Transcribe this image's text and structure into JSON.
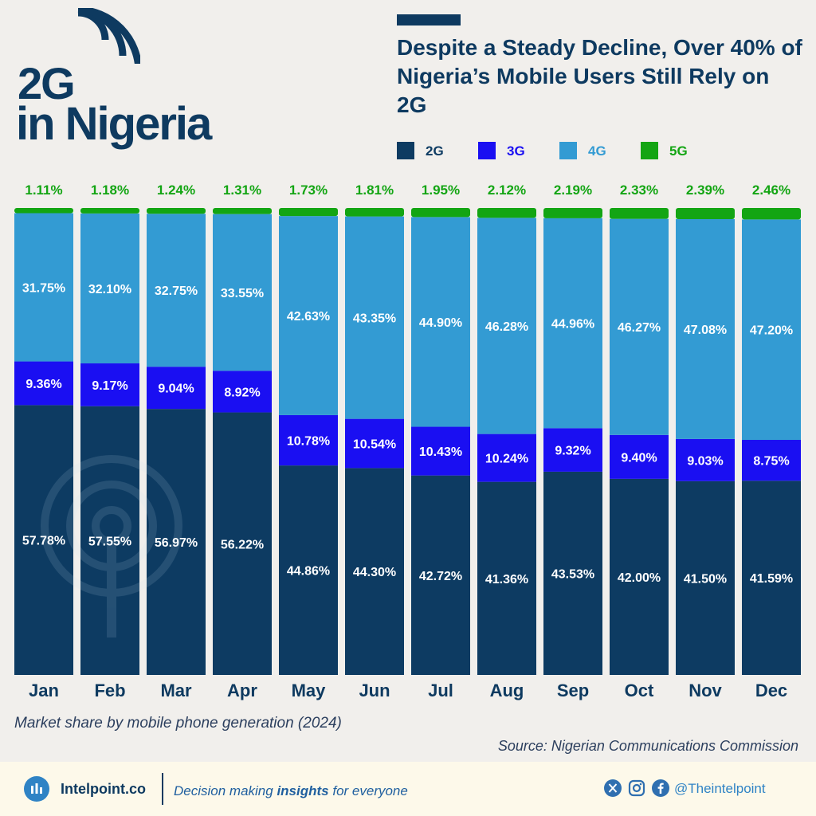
{
  "logo": {
    "line1": "2G",
    "line2": "in Nigeria"
  },
  "headline": "Despite a Steady Decline, Over 40% of Nigeria’s Mobile Users Still Rely on 2G",
  "legend": [
    {
      "label": "2G",
      "color": "#0d3b62",
      "text_color": "#0d3b62"
    },
    {
      "label": "3G",
      "color": "#1a0ff2",
      "text_color": "#1a0ff2"
    },
    {
      "label": "4G",
      "color": "#339bd3",
      "text_color": "#339bd3"
    },
    {
      "label": "5G",
      "color": "#13a513",
      "text_color": "#13a513"
    }
  ],
  "chart_data": {
    "type": "bar",
    "stacked": true,
    "categories": [
      "Jan",
      "Feb",
      "Mar",
      "Apr",
      "May",
      "Jun",
      "Jul",
      "Aug",
      "Sep",
      "Oct",
      "Nov",
      "Dec"
    ],
    "series": [
      {
        "name": "2G",
        "color": "#0d3b62",
        "values": [
          57.78,
          57.55,
          56.97,
          56.22,
          44.86,
          44.3,
          42.72,
          41.36,
          43.53,
          42.0,
          41.5,
          41.59
        ]
      },
      {
        "name": "3G",
        "color": "#1a0ff2",
        "values": [
          9.36,
          9.17,
          9.04,
          8.92,
          10.78,
          10.54,
          10.43,
          10.24,
          9.32,
          9.4,
          9.03,
          8.75
        ]
      },
      {
        "name": "4G",
        "color": "#339bd3",
        "values": [
          31.75,
          32.1,
          32.75,
          33.55,
          42.63,
          43.35,
          44.9,
          46.28,
          44.96,
          46.27,
          47.08,
          47.2
        ]
      },
      {
        "name": "5G",
        "color": "#13a513",
        "values": [
          1.11,
          1.18,
          1.24,
          1.31,
          1.73,
          1.81,
          1.95,
          2.12,
          2.19,
          2.33,
          2.39,
          2.46
        ]
      }
    ],
    "value_suffix": "%",
    "ylim": [
      0,
      100
    ]
  },
  "subtitle": "Market share by mobile phone generation (2024)",
  "source": "Source: Nigerian Communications Commission",
  "footer": {
    "brand": "Intelpoint.co",
    "tagline_pre": "Decision making ",
    "tagline_bold": "insights",
    "tagline_post": " for everyone",
    "handle": "@Theintelpoint"
  }
}
